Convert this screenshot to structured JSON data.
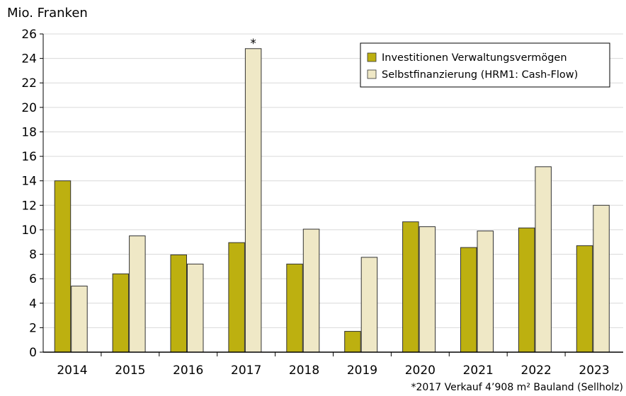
{
  "chart_data": {
    "type": "bar",
    "title": "",
    "ylabel": "Mio. Franken",
    "xlabel": "",
    "categories": [
      "2014",
      "2015",
      "2016",
      "2017",
      "2018",
      "2019",
      "2020",
      "2021",
      "2022",
      "2023"
    ],
    "ylim": [
      0,
      26
    ],
    "yticks": [
      0,
      2,
      4,
      6,
      8,
      10,
      12,
      14,
      16,
      18,
      20,
      22,
      24,
      26
    ],
    "grid": true,
    "legend_position": "top-right",
    "series": [
      {
        "name": "Investitionen Verwaltungsvermögen",
        "color": "#bdb010",
        "values": [
          14.0,
          6.4,
          7.95,
          8.95,
          7.2,
          1.7,
          10.65,
          8.55,
          10.15,
          8.7
        ]
      },
      {
        "name": "Selbstfinanzierung (HRM1: Cash-Flow)",
        "color": "#efe8c6",
        "values": [
          5.4,
          9.5,
          7.2,
          24.8,
          10.05,
          7.75,
          10.25,
          9.9,
          15.15,
          12.0
        ]
      }
    ],
    "annotations": [
      {
        "category": "2017",
        "series": 1,
        "text": "*"
      }
    ],
    "footnote": "*2017 Verkauf 4’908 m² Bauland (Sellholz)"
  }
}
